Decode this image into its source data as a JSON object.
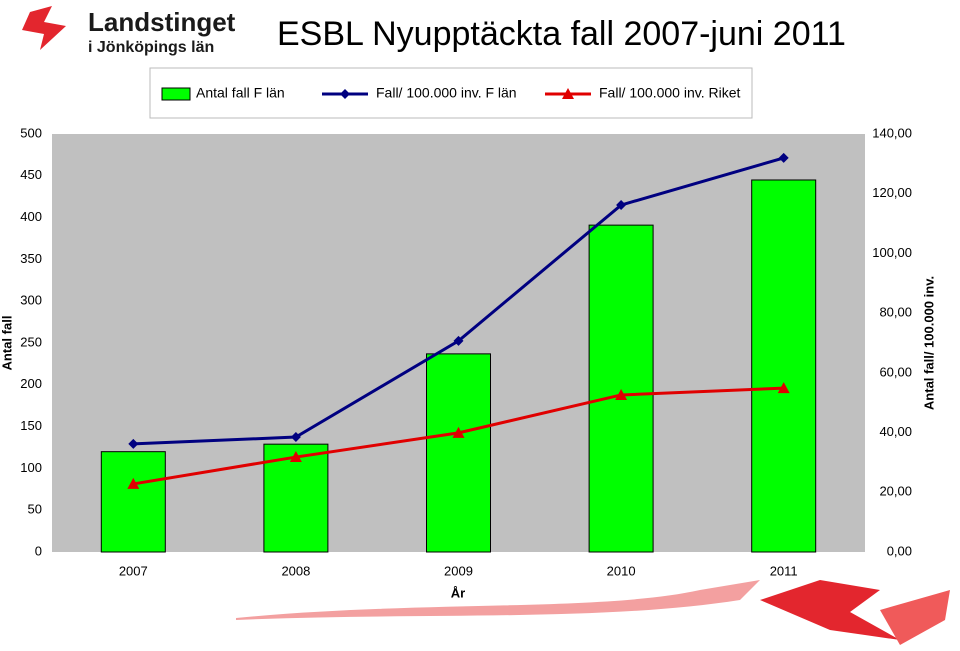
{
  "logo": {
    "name": "Landstinget",
    "region": "i Jönköpings län"
  },
  "chart_data": {
    "type": "bar",
    "title": "ESBL Nyupptäckta fall 2007-juni 2011",
    "x_label": "År",
    "y_label": "Antal fall",
    "y2_label": "Antal fall/ 100.000 inv.",
    "categories": [
      "2007",
      "2008",
      "2009",
      "2010",
      "2011"
    ],
    "series": [
      {
        "name": "Antal fall F län",
        "type": "bar",
        "color": "#00ff00",
        "values": [
          120,
          129,
          237,
          391,
          445
        ]
      },
      {
        "name": "Fall/ 100.000 inv. F län",
        "type": "line",
        "marker": "diamond",
        "axis": "y2",
        "color": "#000080",
        "values": [
          36.2,
          38.5,
          70.7,
          116.2,
          132.0
        ]
      },
      {
        "name": "Fall/ 100.000 inv. Riket",
        "type": "line",
        "marker": "triangle",
        "axis": "y2",
        "color": "#e00000",
        "values": [
          22.8,
          31.8,
          39.9,
          52.6,
          54.9
        ]
      }
    ],
    "ylim": [
      0,
      500
    ],
    "yticks": [
      0,
      50,
      100,
      150,
      200,
      250,
      300,
      350,
      400,
      450,
      500
    ],
    "y2lim": [
      0,
      140
    ],
    "y2ticks": [
      {
        "value": 0,
        "label": "0,00"
      },
      {
        "value": 20,
        "label": "20,00"
      },
      {
        "value": 40,
        "label": "40,00"
      },
      {
        "value": 60,
        "label": "60,00"
      },
      {
        "value": 80,
        "label": "80,00"
      },
      {
        "value": 100,
        "label": "100,00"
      },
      {
        "value": 120,
        "label": "120,00"
      },
      {
        "value": 140,
        "label": "140,00"
      }
    ],
    "legend": "top",
    "plot_background": "#c0c0c0"
  }
}
